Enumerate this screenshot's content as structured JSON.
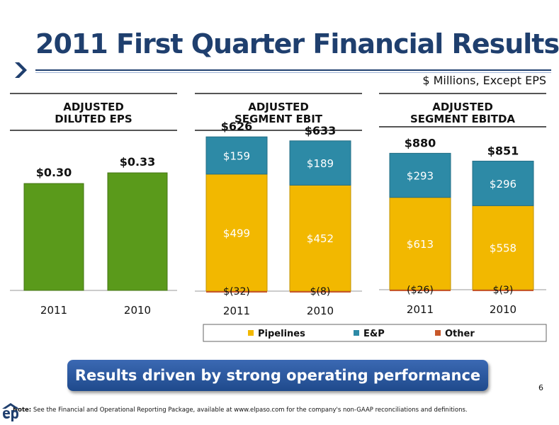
{
  "slide": {
    "title": "2011 First Quarter Financial Results",
    "units": "$ Millions, Except EPS",
    "banner": "Results driven by strong operating performance",
    "page_number": "6",
    "note_prefix": "Note:",
    "note": " See the Financial and Operational Reporting Package, available at www.elpaso.com for the company's non-GAAP reconciliations and definitions."
  },
  "colors": {
    "pipelines": "#f2b800",
    "ep": "#2d8aa6",
    "other": "#c8582a",
    "eps": "#5a9a1b",
    "title": "#1f3f6e"
  },
  "legend": [
    "Pipelines",
    "E&P",
    "Other"
  ],
  "chart_data": [
    {
      "type": "bar",
      "title_line1": "ADJUSTED",
      "title_line2": "DILUTED EPS",
      "categories": [
        "2011",
        "2010"
      ],
      "values": [
        0.3,
        0.33
      ],
      "value_labels": [
        "$0.30",
        "$0.33"
      ]
    },
    {
      "type": "bar",
      "stacked": true,
      "title_line1": "ADJUSTED",
      "title_line2": "SEGMENT EBIT",
      "categories": [
        "2011",
        "2010"
      ],
      "series": [
        {
          "name": "Pipelines",
          "values": [
            499,
            452
          ],
          "labels": [
            "$499",
            "$452"
          ]
        },
        {
          "name": "E&P",
          "values": [
            159,
            189
          ],
          "labels": [
            "$159",
            "$189"
          ]
        },
        {
          "name": "Other",
          "values": [
            -32,
            -8
          ],
          "labels": [
            "$(32)",
            "$(8)"
          ]
        }
      ],
      "totals": [
        "$626",
        "$633"
      ]
    },
    {
      "type": "bar",
      "stacked": true,
      "title_line1": "ADJUSTED",
      "title_line2": "SEGMENT EBITDA",
      "categories": [
        "2011",
        "2010"
      ],
      "series": [
        {
          "name": "Pipelines",
          "values": [
            613,
            558
          ],
          "labels": [
            "$613",
            "$558"
          ]
        },
        {
          "name": "E&P",
          "values": [
            293,
            296
          ],
          "labels": [
            "$293",
            "$296"
          ]
        },
        {
          "name": "Other",
          "values": [
            -26,
            -3
          ],
          "labels": [
            "($26)",
            "$(3)"
          ]
        }
      ],
      "totals": [
        "$880",
        "$851"
      ]
    }
  ]
}
